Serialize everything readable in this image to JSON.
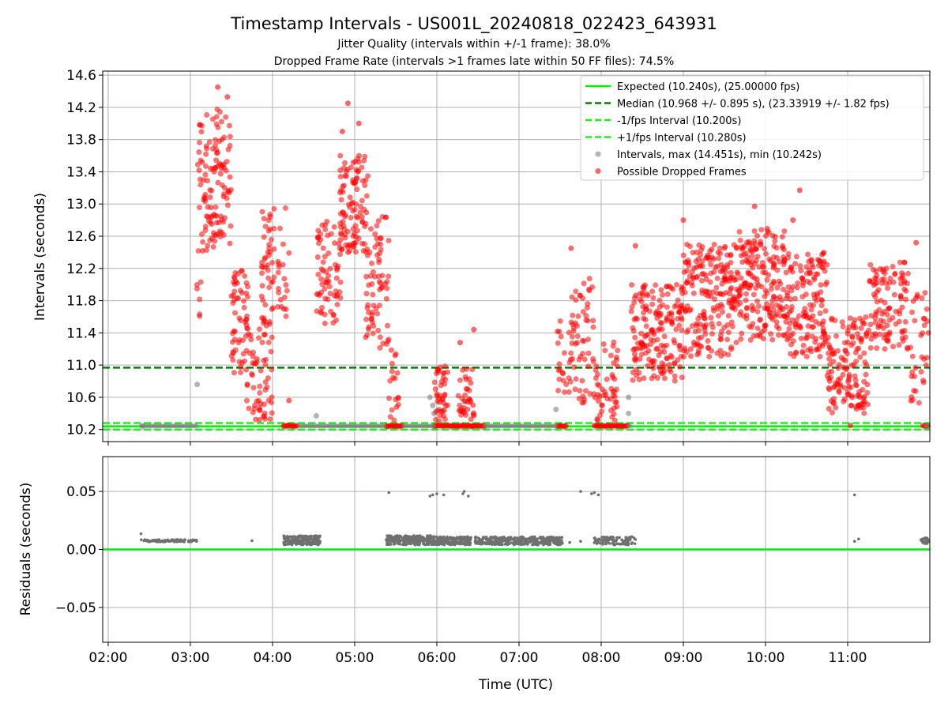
{
  "title": "Timestamp Intervals - US001L_20240818_022423_643931",
  "subtitle_1": "Jitter Quality (intervals within +/-1 frame): 38.0%",
  "subtitle_2": "Dropped Frame Rate (intervals >1 frames late within 50 FF files): 74.5%",
  "colors": {
    "expected": "#00ee00",
    "median": "#007f00",
    "fps_band": "#22ee22",
    "interval_points": "#808080",
    "dropped_points": "#ff0000",
    "residual_points": "#707070",
    "grid": "#b0b0b0"
  },
  "chart_data": [
    {
      "type": "scatter",
      "id": "top",
      "ylabel": "Intervals (seconds)",
      "ylim": [
        10.05,
        14.65
      ],
      "xlim": [
        "01:56",
        "12:00"
      ],
      "yticks": [
        10.2,
        10.6,
        11.0,
        11.4,
        11.8,
        12.2,
        12.6,
        13.0,
        13.4,
        13.8,
        14.2,
        14.6
      ],
      "ytick_labels": [
        "10.2",
        "10.6",
        "11.0",
        "11.4",
        "11.8",
        "12.2",
        "12.6",
        "13.0",
        "13.4",
        "13.8",
        "14.2",
        "14.6"
      ],
      "grid": true,
      "legend_position": "top-right",
      "legend": [
        {
          "label": "Expected (10.240s), (25.00000 fps)",
          "style": "solid",
          "color": "#00ee00"
        },
        {
          "label": "Median (10.968 +/- 0.895 s), (23.33919 +/- 1.82 fps)",
          "style": "dashed",
          "color": "#007f00"
        },
        {
          "label": "-1/fps Interval (10.200s)",
          "style": "dashed",
          "color": "#22ee22"
        },
        {
          "label": "+1/fps Interval (10.280s)",
          "style": "dashed",
          "color": "#22ee22"
        },
        {
          "label": "Intervals, max (14.451s), min (10.242s)",
          "style": "marker",
          "color": "#808080"
        },
        {
          "label": "Possible Dropped Frames",
          "style": "marker",
          "color": "#ff0000"
        }
      ],
      "hlines": [
        {
          "y": 10.24,
          "style": "solid",
          "color": "#00ee00"
        },
        {
          "y": 10.968,
          "style": "dashed",
          "color": "#007f00"
        },
        {
          "y": 10.2,
          "style": "dashed",
          "color": "#22ee22"
        },
        {
          "y": 10.28,
          "style": "dashed",
          "color": "#22ee22"
        }
      ],
      "interval_points": [
        [
          "02:25",
          10.242
        ],
        [
          "03:05",
          10.76
        ],
        [
          "04:32",
          10.37
        ],
        [
          "05:55",
          10.6
        ],
        [
          "05:57",
          10.5
        ],
        [
          "05:58",
          10.4
        ],
        [
          "06:02",
          10.45
        ],
        [
          "06:18",
          10.46
        ],
        [
          "06:20",
          10.55
        ],
        [
          "07:27",
          10.45
        ],
        [
          "08:20",
          10.6
        ],
        [
          "08:20",
          10.4
        ]
      ],
      "dropped_clusters": [
        {
          "x": [
            "03:05",
            "03:30"
          ],
          "y": [
            12.4,
            14.2
          ],
          "n": 120
        },
        {
          "x": [
            "03:04",
            "03:08"
          ],
          "y": [
            11.6,
            12.1
          ],
          "n": 6
        },
        {
          "x": [
            "03:30",
            "03:42"
          ],
          "y": [
            10.9,
            12.2
          ],
          "n": 55
        },
        {
          "x": [
            "03:40",
            "04:00"
          ],
          "y": [
            10.3,
            11.6
          ],
          "n": 70
        },
        {
          "x": [
            "03:52",
            "04:12"
          ],
          "y": [
            11.6,
            13.0
          ],
          "n": 60
        },
        {
          "x": [
            "04:32",
            "04:50"
          ],
          "y": [
            11.5,
            12.8
          ],
          "n": 70
        },
        {
          "x": [
            "04:48",
            "05:10"
          ],
          "y": [
            12.4,
            13.6
          ],
          "n": 100
        },
        {
          "x": [
            "05:08",
            "05:25"
          ],
          "y": [
            11.2,
            12.9
          ],
          "n": 70
        },
        {
          "x": [
            "05:25",
            "05:32"
          ],
          "y": [
            10.3,
            11.2
          ],
          "n": 18
        },
        {
          "x": [
            "05:58",
            "06:08"
          ],
          "y": [
            10.3,
            11.0
          ],
          "n": 40
        },
        {
          "x": [
            "06:15",
            "06:27"
          ],
          "y": [
            10.3,
            11.0
          ],
          "n": 35
        },
        {
          "x": [
            "07:27",
            "07:40"
          ],
          "y": [
            10.6,
            11.6
          ],
          "n": 25
        },
        {
          "x": [
            "07:38",
            "07:55"
          ],
          "y": [
            10.5,
            12.1
          ],
          "n": 55
        },
        {
          "x": [
            "07:55",
            "08:12"
          ],
          "y": [
            10.3,
            11.3
          ],
          "n": 50
        },
        {
          "x": [
            "08:22",
            "09:00"
          ],
          "y": [
            10.8,
            12.0
          ],
          "n": 180
        },
        {
          "x": [
            "09:00",
            "09:40"
          ],
          "y": [
            11.1,
            12.5
          ],
          "n": 210
        },
        {
          "x": [
            "09:40",
            "10:15"
          ],
          "y": [
            11.3,
            12.7
          ],
          "n": 190
        },
        {
          "x": [
            "10:15",
            "10:45"
          ],
          "y": [
            11.1,
            12.4
          ],
          "n": 150
        },
        {
          "x": [
            "10:45",
            "11:15"
          ],
          "y": [
            10.4,
            11.6
          ],
          "n": 140
        },
        {
          "x": [
            "11:15",
            "11:45"
          ],
          "y": [
            11.2,
            12.3
          ],
          "n": 110
        },
        {
          "x": [
            "11:45",
            "11:59"
          ],
          "y": [
            10.5,
            11.9
          ],
          "n": 35
        }
      ],
      "dropped_extremes": [
        [
          "03:20",
          14.451
        ],
        [
          "03:27",
          14.33
        ],
        [
          "04:55",
          14.25
        ],
        [
          "05:03",
          14.0
        ],
        [
          "04:51",
          13.9
        ],
        [
          "10:25",
          13.17
        ],
        [
          "08:25",
          12.48
        ],
        [
          "07:38",
          12.45
        ],
        [
          "09:00",
          12.8
        ],
        [
          "09:52",
          12.97
        ],
        [
          "10:20",
          12.8
        ],
        [
          "06:27",
          11.44
        ],
        [
          "06:17",
          11.28
        ],
        [
          "11:50",
          12.52
        ],
        [
          "04:12",
          10.56
        ],
        [
          "11:02",
          10.25
        ]
      ],
      "dropped_baseline_runs": [
        [
          "04:08",
          "04:18"
        ],
        [
          "05:23",
          "05:35"
        ],
        [
          "05:58",
          "06:25"
        ],
        [
          "06:25",
          "06:35"
        ],
        [
          "07:28",
          "07:35"
        ],
        [
          "07:55",
          "08:20"
        ],
        [
          "11:55",
          "11:59"
        ]
      ],
      "dropped_baseline_y": 10.245
    },
    {
      "type": "scatter",
      "id": "bottom",
      "ylabel": "Residuals (seconds)",
      "xlabel": "Time (UTC)",
      "xlim": [
        "01:56",
        "12:00"
      ],
      "ylim": [
        -0.08,
        0.08
      ],
      "yticks": [
        -0.05,
        0.0,
        0.05
      ],
      "ytick_labels": [
        "−0.05",
        "0.00",
        "0.05"
      ],
      "xticks": [
        "02:00",
        "03:00",
        "04:00",
        "05:00",
        "06:00",
        "07:00",
        "08:00",
        "09:00",
        "10:00",
        "11:00"
      ],
      "grid": true,
      "hline": {
        "y": 0.0,
        "color": "#00ee00"
      },
      "residual_runs": [
        {
          "x": [
            "02:24",
            "03:05"
          ],
          "y": [
            0.0065,
            0.0085
          ],
          "n": 90
        },
        {
          "x": [
            "04:08",
            "04:35"
          ],
          "y": [
            0.004,
            0.012
          ],
          "n": 200
        },
        {
          "x": [
            "05:23",
            "05:58"
          ],
          "y": [
            0.004,
            0.012
          ],
          "n": 250
        },
        {
          "x": [
            "05:58",
            "06:25"
          ],
          "y": [
            0.004,
            0.011
          ],
          "n": 180
        },
        {
          "x": [
            "06:28",
            "07:32"
          ],
          "y": [
            0.004,
            0.011
          ],
          "n": 350
        },
        {
          "x": [
            "07:55",
            "08:25"
          ],
          "y": [
            0.004,
            0.011
          ],
          "n": 100
        },
        {
          "x": [
            "11:53",
            "11:59"
          ],
          "y": [
            0.005,
            0.01
          ],
          "n": 25
        }
      ],
      "residual_extremes": [
        [
          "02:24",
          0.0135
        ],
        [
          "03:45",
          0.0075
        ],
        [
          "05:25",
          0.049
        ],
        [
          "05:55",
          0.046
        ],
        [
          "05:57",
          0.047
        ],
        [
          "06:00",
          0.048
        ],
        [
          "06:05",
          0.047
        ],
        [
          "06:19",
          0.048
        ],
        [
          "06:20",
          0.05
        ],
        [
          "06:23",
          0.046
        ],
        [
          "07:45",
          0.05
        ],
        [
          "07:53",
          0.048
        ],
        [
          "07:55",
          0.049
        ],
        [
          "07:58",
          0.047
        ],
        [
          "07:37",
          0.006
        ],
        [
          "07:45",
          0.007
        ],
        [
          "11:05",
          0.047
        ],
        [
          "11:05",
          0.007
        ],
        [
          "11:08",
          0.009
        ]
      ]
    }
  ]
}
